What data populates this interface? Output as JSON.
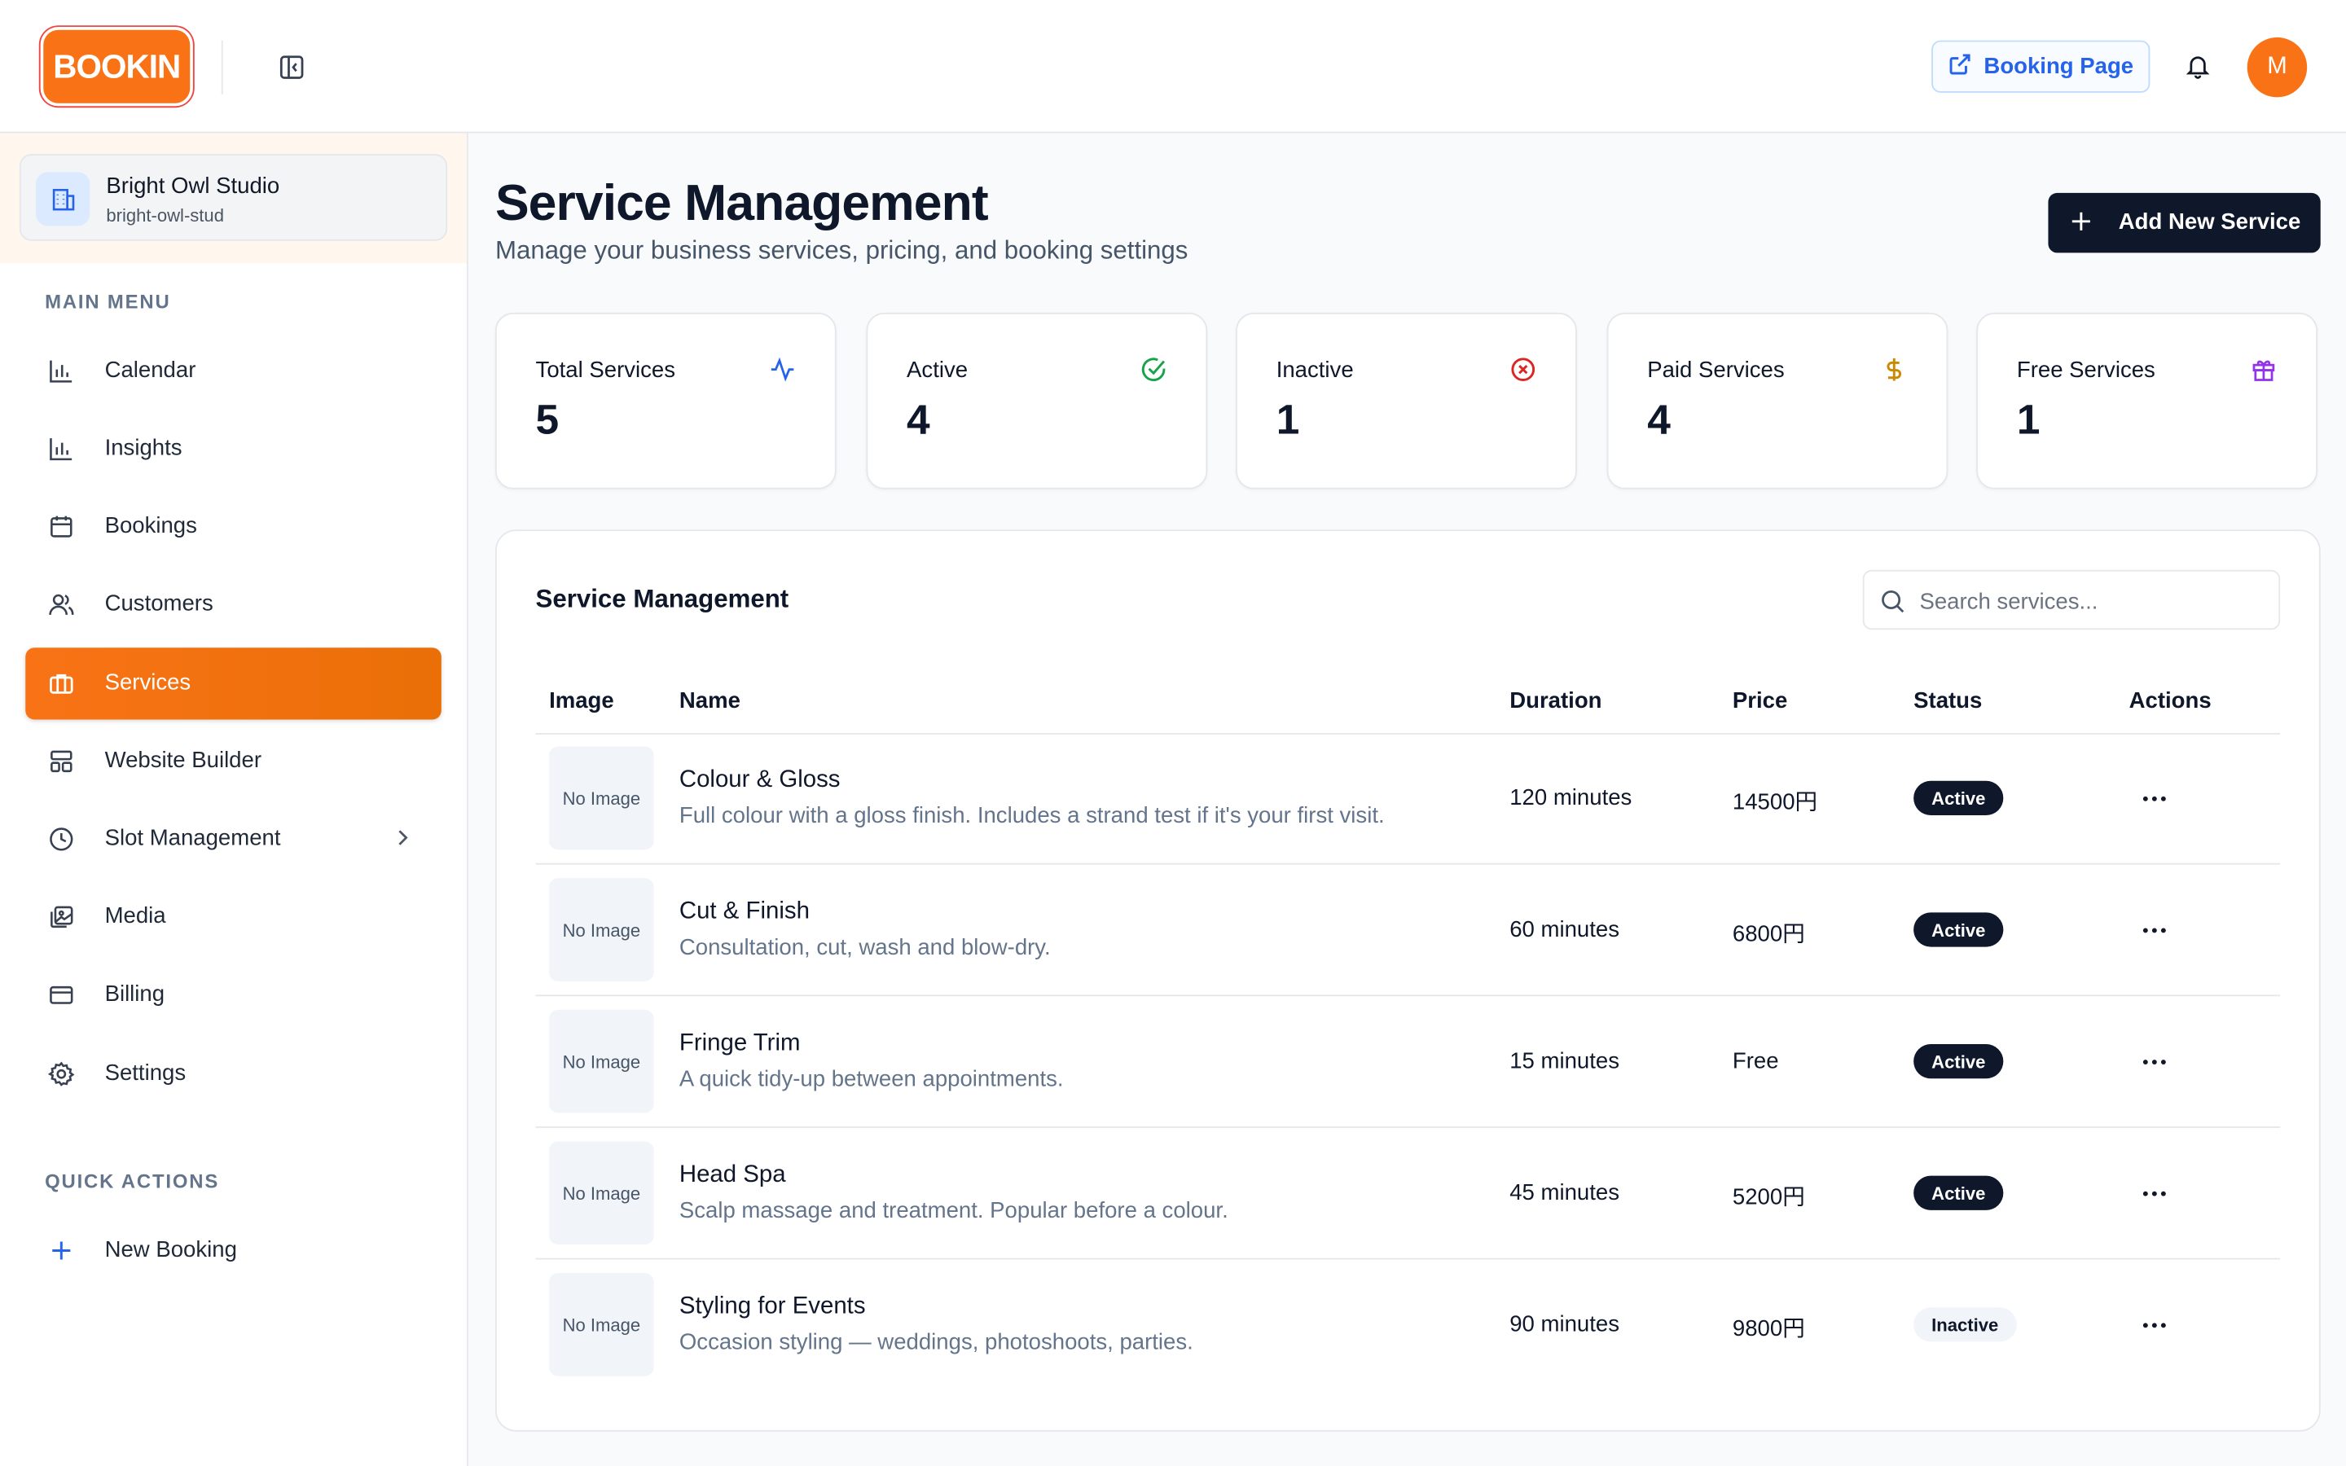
{
  "header": {
    "logo_text": "BOOKIN",
    "booking_page_label": "Booking Page",
    "avatar_initial": "M"
  },
  "sidebar": {
    "business": {
      "name": "Bright Owl Studio",
      "slug": "bright-owl-stud"
    },
    "main_menu_label": "MAIN MENU",
    "items": [
      {
        "label": "Calendar",
        "icon": "bar-chart-icon"
      },
      {
        "label": "Insights",
        "icon": "bar-chart-icon"
      },
      {
        "label": "Bookings",
        "icon": "calendar-icon"
      },
      {
        "label": "Customers",
        "icon": "users-icon"
      },
      {
        "label": "Services",
        "icon": "briefcase-icon",
        "active": true
      },
      {
        "label": "Website Builder",
        "icon": "layout-icon"
      },
      {
        "label": "Slot Management",
        "icon": "clock-icon"
      },
      {
        "label": "Media",
        "icon": "images-icon"
      },
      {
        "label": "Billing",
        "icon": "credit-card-icon"
      },
      {
        "label": "Settings",
        "icon": "gear-icon"
      }
    ],
    "quick_actions_label": "QUICK ACTIONS",
    "quick_actions": [
      {
        "label": "New Booking",
        "icon": "plus-icon"
      }
    ]
  },
  "page": {
    "title": "Service Management",
    "subtitle": "Manage your business services, pricing, and booking settings",
    "add_button": "Add New Service"
  },
  "stats": [
    {
      "label": "Total Services",
      "value": "5",
      "icon": "activity-icon",
      "color": "#2563eb"
    },
    {
      "label": "Active",
      "value": "4",
      "icon": "check-circle-icon",
      "color": "#16a34a"
    },
    {
      "label": "Inactive",
      "value": "1",
      "icon": "x-circle-icon",
      "color": "#dc2626"
    },
    {
      "label": "Paid Services",
      "value": "4",
      "icon": "dollar-icon",
      "color": "#ca8a04"
    },
    {
      "label": "Free Services",
      "value": "1",
      "icon": "gift-icon",
      "color": "#9333ea"
    }
  ],
  "table": {
    "title": "Service Management",
    "search_placeholder": "Search services...",
    "columns": [
      "Image",
      "Name",
      "Duration",
      "Price",
      "Status",
      "Actions"
    ],
    "no_image_label": "No Image",
    "rows": [
      {
        "name": "Colour & Gloss",
        "description": "Full colour with a gloss finish. Includes a strand test if it's your first visit.",
        "duration": "120 minutes",
        "price": "14500円",
        "status": "Active"
      },
      {
        "name": "Cut & Finish",
        "description": "Consultation, cut, wash and blow-dry.",
        "duration": "60 minutes",
        "price": "6800円",
        "status": "Active"
      },
      {
        "name": "Fringe Trim",
        "description": "A quick tidy-up between appointments.",
        "duration": "15 minutes",
        "price": "Free",
        "status": "Active"
      },
      {
        "name": "Head Spa",
        "description": "Scalp massage and treatment. Popular before a colour.",
        "duration": "45 minutes",
        "price": "5200円",
        "status": "Active"
      },
      {
        "name": "Styling for Events",
        "description": "Occasion styling — weddings, photoshoots, parties.",
        "duration": "90 minutes",
        "price": "9800円",
        "status": "Inactive"
      }
    ]
  },
  "colors": {
    "brand": "#f97316",
    "nav_active": "#ef7b14",
    "dark": "#0f172a",
    "link_blue": "#2563eb"
  }
}
